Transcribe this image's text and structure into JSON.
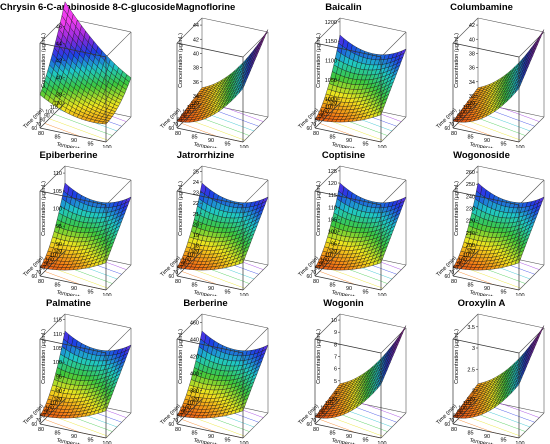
{
  "figure": {
    "axis_labels": {
      "z": "Concentration (µg/mL)",
      "x": "Temperature (°C)",
      "y": "Time (min)"
    }
  },
  "chart_data": [
    {
      "type": "surface3d",
      "title": "Chrysin 6-C-arabinoside 8-C-glucoside",
      "xlabel": "Temperature (°C)",
      "ylabel": "Time (min)",
      "zlabel": "Concentration (µg/mL)",
      "x_ticks": [
        80,
        85,
        90,
        95,
        100
      ],
      "y_ticks": [
        60,
        70,
        80,
        90,
        100,
        110,
        120
      ],
      "z_ticks": [
        38,
        40,
        42,
        44,
        46
      ],
      "zlim": [
        37,
        47
      ],
      "surface_shape": "peak_back_left"
    },
    {
      "type": "surface3d",
      "title": "Magnoflorine",
      "xlabel": "Temperature (°C)",
      "ylabel": "Time (min)",
      "zlabel": "Concentration (µg/mL)",
      "x_ticks": [
        80,
        85,
        90,
        95,
        100
      ],
      "y_ticks": [
        60,
        70,
        80,
        90,
        100,
        110,
        120
      ],
      "z_ticks": [
        34,
        36,
        38,
        40,
        42,
        44
      ],
      "zlim": [
        33,
        45
      ],
      "surface_shape": "rise_right"
    },
    {
      "type": "surface3d",
      "title": "Baicalin",
      "xlabel": "Temperature (°C)",
      "ylabel": "Time (min)",
      "zlabel": "Concentration (µg/mL)",
      "x_ticks": [
        80,
        85,
        90,
        95,
        100
      ],
      "y_ticks": [
        60,
        70,
        80,
        90,
        100,
        110,
        120
      ],
      "z_ticks": [
        1000,
        1050,
        1100,
        1150,
        1200
      ],
      "zlim": [
        990,
        1210
      ],
      "surface_shape": "saddle"
    },
    {
      "type": "surface3d",
      "title": "Columbamine",
      "xlabel": "Temperature (°C)",
      "ylabel": "Time (min)",
      "zlabel": "Concentration (µg/mL)",
      "x_ticks": [
        80,
        85,
        90,
        95,
        100
      ],
      "y_ticks": [
        60,
        70,
        80,
        90,
        100,
        110,
        120
      ],
      "z_ticks": [
        32,
        34,
        36,
        38,
        40,
        42
      ],
      "zlim": [
        31,
        43
      ],
      "surface_shape": "rise_right"
    },
    {
      "type": "surface3d",
      "title": "Epiberberine",
      "xlabel": "Temperature (°C)",
      "ylabel": "Time (min)",
      "zlabel": "Concentration (µg/mL)",
      "x_ticks": [
        80,
        85,
        90,
        95,
        100
      ],
      "y_ticks": [
        60,
        70,
        80,
        90,
        100,
        110,
        120
      ],
      "z_ticks": [
        90,
        95,
        100,
        105,
        110
      ],
      "zlim": [
        88,
        112
      ],
      "surface_shape": "saddle"
    },
    {
      "type": "surface3d",
      "title": "Jatrorrhizine",
      "xlabel": "Temperature (°C)",
      "ylabel": "Time (min)",
      "zlabel": "Concentration (µg/mL)",
      "x_ticks": [
        80,
        85,
        90,
        95,
        100
      ],
      "y_ticks": [
        60,
        70,
        80,
        90,
        100,
        110,
        120
      ],
      "z_ticks": [
        18,
        19,
        20,
        21,
        22,
        23,
        24,
        25
      ],
      "zlim": [
        17.5,
        25.5
      ],
      "surface_shape": "saddle"
    },
    {
      "type": "surface3d",
      "title": "Coptisine",
      "xlabel": "Temperature (°C)",
      "ylabel": "Time (min)",
      "zlabel": "Concentration (µg/mL)",
      "x_ticks": [
        80,
        85,
        90,
        95,
        100
      ],
      "y_ticks": [
        60,
        70,
        80,
        90,
        100,
        110,
        120
      ],
      "z_ticks": [
        95,
        100,
        105,
        110,
        115,
        120,
        125
      ],
      "zlim": [
        92,
        127
      ],
      "surface_shape": "saddle"
    },
    {
      "type": "surface3d",
      "title": "Wogonoside",
      "xlabel": "Temperature (°C)",
      "ylabel": "Time (min)",
      "zlabel": "Concentration (µg/mL)",
      "x_ticks": [
        80,
        85,
        90,
        95,
        100
      ],
      "y_ticks": [
        60,
        70,
        80,
        90,
        100,
        110,
        120
      ],
      "z_ticks": [
        200,
        210,
        220,
        230,
        240,
        250,
        260
      ],
      "zlim": [
        195,
        265
      ],
      "surface_shape": "saddle"
    },
    {
      "type": "surface3d",
      "title": "Palmatine",
      "xlabel": "Temperature (°C)",
      "ylabel": "Time (min)",
      "zlabel": "Concentration (µg/mL)",
      "x_ticks": [
        80,
        85,
        90,
        95,
        100
      ],
      "y_ticks": [
        60,
        70,
        80,
        90,
        100,
        110,
        120
      ],
      "z_ticks": [
        90,
        95,
        100,
        105,
        110,
        115
      ],
      "zlim": [
        87,
        117
      ],
      "surface_shape": "saddle"
    },
    {
      "type": "surface3d",
      "title": "Berberine",
      "xlabel": "Temperature (°C)",
      "ylabel": "Time (min)",
      "zlabel": "Concentration (µg/mL)",
      "x_ticks": [
        80,
        85,
        90,
        95,
        100
      ],
      "y_ticks": [
        60,
        70,
        80,
        90,
        100,
        110,
        120
      ],
      "z_ticks": [
        380,
        400,
        420,
        440,
        460
      ],
      "zlim": [
        370,
        470
      ],
      "surface_shape": "saddle"
    },
    {
      "type": "surface3d",
      "title": "Wogonin",
      "xlabel": "Temperature (°C)",
      "ylabel": "Time (min)",
      "zlabel": "Concentration (µg/mL)",
      "x_ticks": [
        80,
        85,
        90,
        95,
        100
      ],
      "y_ticks": [
        60,
        70,
        80,
        90,
        100,
        110,
        120
      ],
      "z_ticks": [
        4,
        5,
        6,
        7,
        8,
        9,
        10
      ],
      "zlim": [
        3.5,
        10.5
      ],
      "surface_shape": "rise_right"
    },
    {
      "type": "surface3d",
      "title": "Oroxylin A",
      "xlabel": "Temperature (°C)",
      "ylabel": "Time (min)",
      "zlabel": "Concentration (µg/mL)",
      "x_ticks": [
        80,
        85,
        90,
        95,
        100
      ],
      "y_ticks": [
        60,
        70,
        80,
        90,
        100,
        110,
        120
      ],
      "z_ticks": [
        2.0,
        2.5,
        3.0,
        3.5
      ],
      "zlim": [
        1.8,
        3.8
      ],
      "surface_shape": "rise_right"
    }
  ]
}
